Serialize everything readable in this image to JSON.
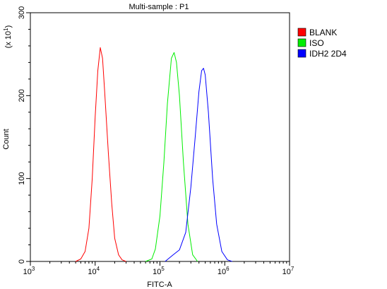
{
  "chart_data": {
    "type": "line",
    "title": "Multi-sample : P1",
    "xlabel": "FITC-A",
    "ylabel": "Count",
    "y_multiplier": "(x 10",
    "y_multiplier_exp": "1",
    "x_scale": "log",
    "xlim": [
      1000,
      10000000
    ],
    "ylim": [
      0,
      300
    ],
    "x_ticks": [
      {
        "value": 1000,
        "base": "10",
        "exp": "3"
      },
      {
        "value": 10000,
        "base": "10",
        "exp": "4"
      },
      {
        "value": 100000,
        "base": "10",
        "exp": "5"
      },
      {
        "value": 1000000,
        "base": "10",
        "exp": "6"
      },
      {
        "value": 10000000,
        "base": "10",
        "exp": "7"
      }
    ],
    "y_ticks": [
      {
        "value": 0,
        "label": "0"
      },
      {
        "value": 100,
        "label": "100"
      },
      {
        "value": 200,
        "label": "200"
      },
      {
        "value": 300,
        "label": "300"
      }
    ],
    "legend_position": "right",
    "series": [
      {
        "name": "BLANK",
        "color": "#ff0000",
        "x": [
          5000,
          6000,
          7000,
          8000,
          9000,
          10000,
          11000,
          12000,
          13000,
          14000,
          16000,
          18000,
          20000,
          23000,
          26000,
          30000
        ],
        "y": [
          0,
          3,
          12,
          40,
          100,
          175,
          230,
          258,
          245,
          205,
          130,
          70,
          28,
          8,
          2,
          0
        ]
      },
      {
        "name": "ISO",
        "color": "#00ee00",
        "x": [
          60000,
          75000,
          85000,
          100000,
          115000,
          130000,
          150000,
          165000,
          180000,
          200000,
          230000,
          270000,
          320000,
          380000
        ],
        "y": [
          0,
          3,
          15,
          55,
          120,
          190,
          245,
          252,
          240,
          200,
          120,
          45,
          8,
          0
        ]
      },
      {
        "name": "IDH2 2D4",
        "color": "#0000ff",
        "x": [
          120000,
          160000,
          200000,
          250000,
          300000,
          350000,
          400000,
          440000,
          470000,
          500000,
          560000,
          650000,
          750000,
          900000,
          1100000,
          1300000
        ],
        "y": [
          0,
          8,
          14,
          35,
          90,
          150,
          205,
          230,
          233,
          225,
          180,
          100,
          45,
          12,
          2,
          0
        ]
      }
    ]
  }
}
